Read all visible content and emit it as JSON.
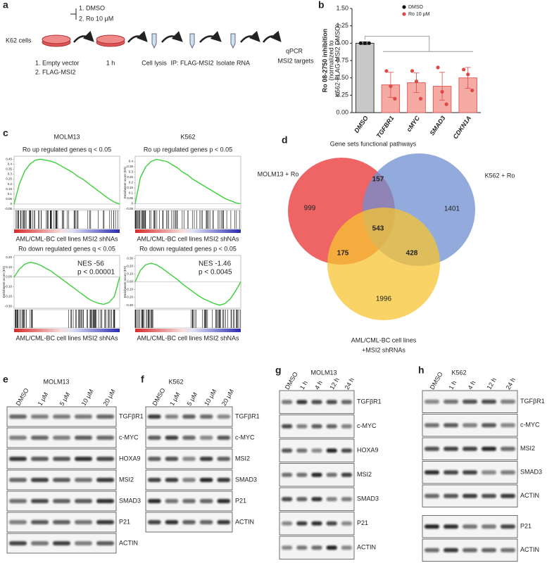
{
  "panel_a": {
    "label": "a",
    "treatment": [
      "1. DMSO",
      "2. Ro 10 μM"
    ],
    "cells": "K62 cells",
    "vectors": [
      "1. Empty vector",
      "2. FLAG-MSI2"
    ],
    "steps": [
      "1 h",
      "Cell lysis",
      "IP: FLAG-MSI2",
      "Isolate RNA"
    ],
    "readout": [
      "qPCR",
      "MSI2 targets"
    ]
  },
  "chart_data": {
    "type": "bar",
    "panel_label": "b",
    "y_label": [
      "Ro 08-2750 inhibition",
      "(normalized to",
      "K562-FLAG-MSI2 DMSO)"
    ],
    "categories": [
      "DMSO",
      "TGFBR1",
      "cMYC",
      "SMAD3",
      "CDKN1A"
    ],
    "series": [
      {
        "name": "DMSO",
        "color": "#111111",
        "bar_color": "#c8c8c8",
        "values": [
          1.0,
          null,
          null,
          null,
          null
        ],
        "errors": [
          0.02,
          null,
          null,
          null,
          null
        ],
        "points": [
          [
            1.0,
            1.0,
            1.0
          ],
          null,
          null,
          null,
          null
        ]
      },
      {
        "name": "Ro 10 μM",
        "color": "#e04848",
        "bar_color": "#f5aaa3",
        "values": [
          null,
          0.4,
          0.43,
          0.38,
          0.5
        ],
        "errors": [
          null,
          0.18,
          0.14,
          0.2,
          0.15
        ],
        "points": [
          null,
          [
            0.6,
            0.38,
            0.2
          ],
          [
            0.6,
            0.45,
            0.2
          ],
          [
            0.65,
            0.3,
            0.12
          ],
          [
            0.62,
            0.55,
            0.32
          ]
        ]
      }
    ],
    "ylim": [
      0,
      1.5
    ],
    "yticks": [
      {
        "value": 0,
        "label": "0.00"
      },
      {
        "value": 0.25,
        "label": "0.25"
      },
      {
        "value": 0.5,
        "label": "0.50"
      },
      {
        "value": 0.75,
        "label": "0.75"
      },
      {
        "value": 1,
        "label": "1.00"
      },
      {
        "value": 1.25,
        "label": "1.25"
      },
      {
        "value": 1.5,
        "label": "1.50"
      }
    ]
  },
  "panel_c": {
    "label": "c",
    "columns": [
      "MOLM13",
      "K562"
    ],
    "plots": [
      {
        "title": "Ro up regulated genes q < 0.05",
        "x_label": "AML/CML-BC cell lines MSI2 shNAs",
        "ylim": [
          -0.05,
          0.48
        ],
        "yticks": [
          0.45,
          0.4,
          0.35,
          0.3,
          0.25,
          0.2,
          0.15,
          0.1,
          0.05,
          0,
          -0.05
        ],
        "values": [
          0,
          0.2,
          0.33,
          0.4,
          0.44,
          0.45,
          0.44,
          0.43,
          0.41,
          0.38,
          0.35,
          0.32,
          0.28,
          0.25,
          0.21,
          0.17,
          0.13,
          0.09,
          0.05,
          0.02,
          0
        ]
      },
      {
        "title": "Ro up regulated genes p < 0.05",
        "y_label": "Enrichment score (ES)",
        "x_label": "AML/CML-BC cell lines MSI2 shNAs",
        "ylim": [
          -0.05,
          0.45
        ],
        "yticks": [
          0.4,
          0.35,
          0.3,
          0.25,
          0.2,
          0.15,
          0.1,
          0.05,
          0,
          -0.05
        ],
        "values": [
          0,
          0.25,
          0.35,
          0.4,
          0.42,
          0.41,
          0.4,
          0.37,
          0.34,
          0.3,
          0.27,
          0.23,
          0.2,
          0.17,
          0.14,
          0.11,
          0.08,
          0.05,
          0.03,
          0.01,
          0
        ]
      },
      {
        "title": "Ro down regulated genes q < 0.05",
        "y_label": "Enrichment score (ES)",
        "x_label": "AML/CML-BC cell lines MSI2 shNAs",
        "annotation": [
          "NES -56",
          "p < 0.00001"
        ],
        "ylim": [
          -0.32,
          0.22
        ],
        "yticks": [
          {
            "value": 0.2,
            "label": "0.20"
          },
          {
            "value": 0.1,
            "label": "0.10"
          },
          {
            "value": 0,
            "label": "0.00"
          },
          {
            "value": -0.1,
            "label": "-0.10"
          },
          {
            "value": -0.2,
            "label": "-0.20"
          },
          {
            "value": -0.3,
            "label": "-0.30"
          }
        ],
        "values": [
          0,
          0.08,
          0.13,
          0.15,
          0.14,
          0.12,
          0.09,
          0.06,
          0.02,
          -0.02,
          -0.06,
          -0.1,
          -0.14,
          -0.18,
          -0.22,
          -0.25,
          -0.27,
          -0.28,
          -0.26,
          -0.2,
          0
        ]
      },
      {
        "title": "Ro down regulated genes p < 0.05",
        "y_label": "Enrichment score (ES)",
        "x_label": "AML/CML-BC cell lines MSI2 shNAs",
        "annotation": [
          "NES -1.46",
          "p < 0.0045"
        ],
        "ylim": [
          -0.34,
          0.34
        ],
        "yticks": [
          {
            "value": 0.3,
            "label": "0.30"
          },
          {
            "value": 0.2,
            "label": "0.20"
          },
          {
            "value": 0.1,
            "label": "0.10"
          },
          {
            "value": 0,
            "label": "0.00"
          },
          {
            "value": -0.1,
            "label": "-0.10"
          },
          {
            "value": -0.2,
            "label": "-0.20"
          },
          {
            "value": -0.3,
            "label": "-0.30"
          }
        ],
        "values": [
          0,
          0.15,
          0.22,
          0.24,
          0.22,
          0.18,
          0.13,
          0.08,
          0.03,
          -0.03,
          -0.08,
          -0.13,
          -0.18,
          -0.22,
          -0.25,
          -0.28,
          -0.3,
          -0.28,
          -0.22,
          -0.12,
          0
        ]
      }
    ]
  },
  "panel_d": {
    "label": "d",
    "title": "Gene sets functional pathways",
    "sets": [
      "MOLM13 + Ro",
      "K562 + Ro",
      [
        "AML/CML-BC cell lines",
        "+MSI2 shRNAs"
      ]
    ],
    "counts": [
      "999",
      "157",
      "1401",
      "543",
      "175",
      "428",
      "1996"
    ]
  },
  "blots": [
    {
      "label": "e",
      "cell_line": "MOLM13",
      "lanes": [
        "DMSO",
        "1 μM",
        "5 μM",
        "10 μM",
        "20 μM"
      ],
      "blocks": [
        [
          "TGFβR1",
          "c-MYC",
          "HOXA9",
          "MSI2",
          "SMAD3",
          "P21",
          "ACTIN"
        ]
      ]
    },
    {
      "label": "f",
      "cell_line": "K562",
      "lanes": [
        "DMSO",
        "1 μM",
        "5 μM",
        "10 μM",
        "20 μM"
      ],
      "blocks": [
        [
          "TGFβR1",
          "c-MYC",
          "MSI2",
          "SMAD3",
          "P21",
          "ACTIN"
        ]
      ]
    },
    {
      "label": "g",
      "cell_line": "MOLM13",
      "lanes": [
        "DMSO",
        "1 h",
        "4 h",
        "12 h",
        "24 h"
      ],
      "blocks": [
        [
          "TGFβR1",
          "c-MYC",
          "HOXA9",
          "MSI2",
          "SMAD3",
          "P21",
          "ACTIN"
        ]
      ]
    },
    {
      "label": "h",
      "cell_line": "K562",
      "lanes": [
        "DMSO",
        "1 h",
        "4 h",
        "12 h",
        "24 h"
      ],
      "blocks": [
        [
          "TGFβR1",
          "c-MYC",
          "MSI2",
          "SMAD3",
          "ACTIN"
        ],
        [
          "P21",
          "ACTIN"
        ]
      ]
    }
  ]
}
